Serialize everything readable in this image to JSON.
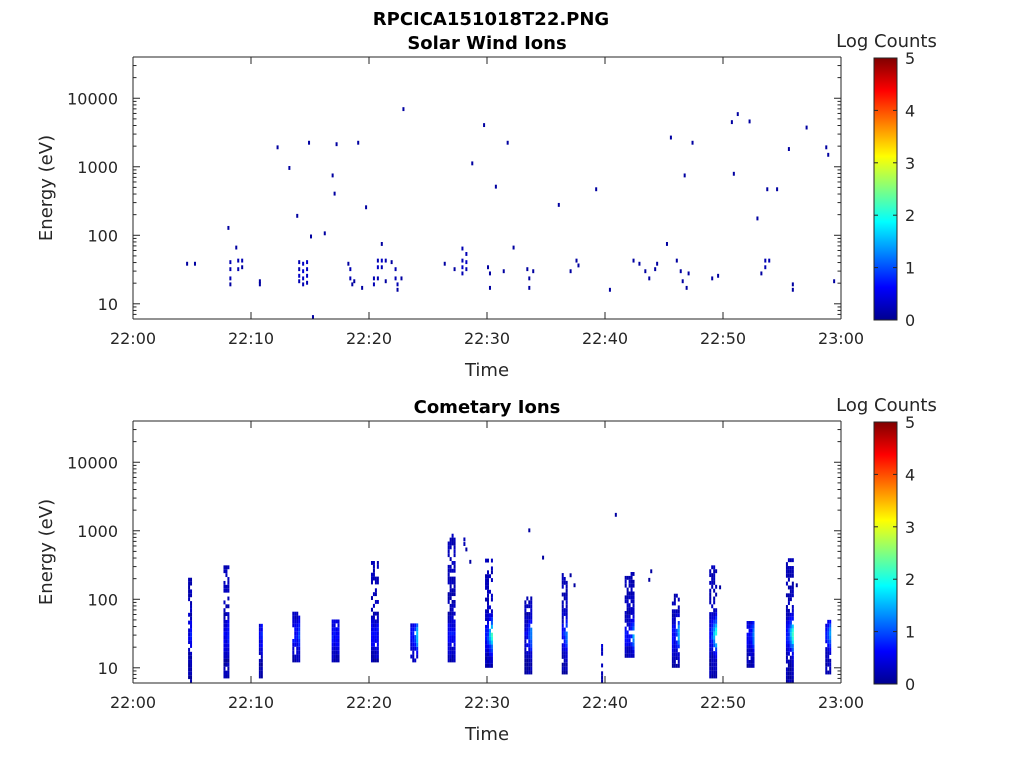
{
  "figure_title": "RPCICA151018T22.PNG",
  "colormap": [
    "#00008f",
    "#0000ff",
    "#0080ff",
    "#00ffff",
    "#80ff80",
    "#ffff00",
    "#ff8000",
    "#ff0000",
    "#800000"
  ],
  "chart_data": [
    {
      "type": "heatmap",
      "title": "Solar Wind Ions",
      "xlabel": "Time",
      "ylabel": "Energy (eV)",
      "y_scale": "log",
      "xlim": [
        "22:00",
        "23:00"
      ],
      "ylim": [
        6,
        40000
      ],
      "x_ticks": [
        "22:00",
        "22:10",
        "22:20",
        "22:30",
        "22:40",
        "22:50",
        "23:00"
      ],
      "y_ticks": [
        "10",
        "100",
        "1000",
        "10000"
      ],
      "colorbar_label": "Log Counts",
      "colorbar_ticks": [
        "0",
        "1",
        "2",
        "3",
        "4",
        "5"
      ],
      "clim": [
        0,
        5
      ],
      "cells": [
        [
          "22:04:30",
          36,
          0.1
        ],
        [
          "22:05:10",
          36,
          0.1
        ],
        [
          "22:08:10",
          38,
          0.2
        ],
        [
          "22:08:10",
          30,
          0.2
        ],
        [
          "22:08:10",
          22,
          0.2
        ],
        [
          "22:08:10",
          18,
          0.1
        ],
        [
          "22:08:40",
          62,
          0.1
        ],
        [
          "22:08:50",
          40,
          0.2
        ],
        [
          "22:08:50",
          30,
          0.2
        ],
        [
          "22:09:10",
          40,
          0.2
        ],
        [
          "22:09:10",
          32,
          0.1
        ],
        [
          "22:08:00",
          120,
          0.1
        ],
        [
          "22:10:40",
          20,
          0.1
        ],
        [
          "22:10:40",
          18,
          0.1
        ],
        [
          "22:12:10",
          1800,
          0.1
        ],
        [
          "22:13:10",
          900,
          0.1
        ],
        [
          "22:13:50",
          180,
          0.1
        ],
        [
          "22:14:00",
          38,
          0.2
        ],
        [
          "22:14:00",
          30,
          0.2
        ],
        [
          "22:14:00",
          24,
          0.3
        ],
        [
          "22:14:00",
          20,
          0.2
        ],
        [
          "22:14:20",
          36,
          0.3
        ],
        [
          "22:14:20",
          28,
          0.4
        ],
        [
          "22:14:20",
          22,
          0.3
        ],
        [
          "22:14:20",
          18,
          0.2
        ],
        [
          "22:14:40",
          38,
          0.3
        ],
        [
          "22:14:40",
          30,
          0.3
        ],
        [
          "22:14:40",
          24,
          0.3
        ],
        [
          "22:14:40",
          19,
          0.2
        ],
        [
          "22:14:50",
          2100,
          0.1
        ],
        [
          "22:15:00",
          90,
          0.1
        ],
        [
          "22:15:10",
          6,
          0.1
        ],
        [
          "22:16:10",
          100,
          0.1
        ],
        [
          "22:16:50",
          700,
          0.1
        ],
        [
          "22:17:00",
          380,
          0.1
        ],
        [
          "22:17:10",
          2000,
          0.1
        ],
        [
          "22:18:10",
          36,
          0.1
        ],
        [
          "22:18:20",
          30,
          0.2
        ],
        [
          "22:18:20",
          22,
          0.2
        ],
        [
          "22:18:30",
          18,
          0.1
        ],
        [
          "22:18:40",
          20,
          0.1
        ],
        [
          "22:19:00",
          2100,
          0.1
        ],
        [
          "22:19:20",
          16,
          0.1
        ],
        [
          "22:19:40",
          240,
          0.1
        ],
        [
          "22:20:20",
          22,
          0.2
        ],
        [
          "22:20:20",
          18,
          0.2
        ],
        [
          "22:20:40",
          40,
          0.2
        ],
        [
          "22:20:40",
          32,
          0.3
        ],
        [
          "22:20:40",
          22,
          0.2
        ],
        [
          "22:21:00",
          70,
          0.1
        ],
        [
          "22:21:00",
          40,
          0.3
        ],
        [
          "22:21:00",
          32,
          0.2
        ],
        [
          "22:21:20",
          40,
          0.2
        ],
        [
          "22:21:20",
          20,
          0.1
        ],
        [
          "22:21:50",
          38,
          0.1
        ],
        [
          "22:22:10",
          30,
          0.2
        ],
        [
          "22:22:10",
          22,
          0.2
        ],
        [
          "22:22:20",
          18,
          0.2
        ],
        [
          "22:22:20",
          15,
          0.1
        ],
        [
          "22:22:40",
          22,
          0.1
        ],
        [
          "22:22:50",
          6500,
          0.1
        ],
        [
          "22:26:20",
          36,
          0.1
        ],
        [
          "22:27:10",
          30,
          0.1
        ],
        [
          "22:27:50",
          60,
          0.2
        ],
        [
          "22:27:50",
          40,
          0.2
        ],
        [
          "22:27:50",
          32,
          0.3
        ],
        [
          "22:27:50",
          26,
          0.2
        ],
        [
          "22:28:10",
          50,
          0.2
        ],
        [
          "22:28:10",
          38,
          0.3
        ],
        [
          "22:28:10",
          30,
          0.2
        ],
        [
          "22:28:40",
          1050,
          0.1
        ],
        [
          "22:29:40",
          3800,
          0.1
        ],
        [
          "22:30:00",
          32,
          0.1
        ],
        [
          "22:30:10",
          26,
          0.1
        ],
        [
          "22:30:10",
          16,
          0.1
        ],
        [
          "22:30:40",
          480,
          0.1
        ],
        [
          "22:31:20",
          28,
          0.1
        ],
        [
          "22:31:40",
          2100,
          0.1
        ],
        [
          "22:32:10",
          62,
          0.1
        ],
        [
          "22:33:20",
          30,
          0.1
        ],
        [
          "22:33:30",
          22,
          0.1
        ],
        [
          "22:33:30",
          16,
          0.1
        ],
        [
          "22:33:50",
          28,
          0.1
        ],
        [
          "22:36:00",
          260,
          0.1
        ],
        [
          "22:37:00",
          28,
          0.1
        ],
        [
          "22:37:30",
          40,
          0.1
        ],
        [
          "22:37:40",
          34,
          0.1
        ],
        [
          "22:39:10",
          440,
          0.1
        ],
        [
          "22:40:20",
          15,
          0.1
        ],
        [
          "22:42:20",
          40,
          0.1
        ],
        [
          "22:42:50",
          36,
          0.1
        ],
        [
          "22:43:20",
          28,
          0.1
        ],
        [
          "22:43:40",
          22,
          0.1
        ],
        [
          "22:44:10",
          30,
          0.1
        ],
        [
          "22:44:20",
          36,
          0.1
        ],
        [
          "22:45:10",
          70,
          0.1
        ],
        [
          "22:45:30",
          2500,
          0.1
        ],
        [
          "22:46:00",
          40,
          0.1
        ],
        [
          "22:46:20",
          28,
          0.1
        ],
        [
          "22:46:30",
          20,
          0.1
        ],
        [
          "22:46:40",
          700,
          0.1
        ],
        [
          "22:46:50",
          16,
          0.1
        ],
        [
          "22:47:00",
          26,
          0.1
        ],
        [
          "22:47:20",
          2100,
          0.1
        ],
        [
          "22:49:00",
          22,
          0.1
        ],
        [
          "22:49:30",
          24,
          0.1
        ],
        [
          "22:50:40",
          4200,
          0.1
        ],
        [
          "22:50:50",
          740,
          0.1
        ],
        [
          "22:51:10",
          5500,
          0.1
        ],
        [
          "22:52:10",
          4300,
          0.1
        ],
        [
          "22:52:50",
          165,
          0.1
        ],
        [
          "22:53:10",
          26,
          0.1
        ],
        [
          "22:53:30",
          40,
          0.2
        ],
        [
          "22:53:30",
          32,
          0.2
        ],
        [
          "22:53:50",
          40,
          0.2
        ],
        [
          "22:53:40",
          440,
          0.1
        ],
        [
          "22:54:30",
          440,
          0.1
        ],
        [
          "22:55:30",
          1700,
          0.1
        ],
        [
          "22:55:50",
          18,
          0.1
        ],
        [
          "22:55:50",
          15,
          0.1
        ],
        [
          "22:57:00",
          3500,
          0.1
        ],
        [
          "22:58:40",
          1800,
          0.1
        ],
        [
          "22:58:50",
          1400,
          0.1
        ],
        [
          "22:59:20",
          20,
          0.1
        ]
      ]
    },
    {
      "type": "heatmap",
      "title": "Cometary Ions",
      "xlabel": "Time",
      "ylabel": "Energy (eV)",
      "y_scale": "log",
      "xlim": [
        "22:00",
        "23:00"
      ],
      "ylim": [
        6,
        40000
      ],
      "x_ticks": [
        "22:00",
        "22:10",
        "22:20",
        "22:30",
        "22:40",
        "22:50",
        "23:00"
      ],
      "y_ticks": [
        "10",
        "100",
        "1000",
        "10000"
      ],
      "colorbar_label": "Log Counts",
      "colorbar_ticks": [
        "0",
        "1",
        "2",
        "3",
        "4",
        "5"
      ],
      "clim": [
        0,
        5
      ],
      "bursts": [
        {
          "t": "22:04:40",
          "w": 2,
          "peak": "22:04:50",
          "lo": 6,
          "hi": 230,
          "c": 0.5
        },
        {
          "t": "22:07:40",
          "w": 3,
          "peak": "22:08:20",
          "lo": 7,
          "hi": 300,
          "c": 1.4
        },
        {
          "t": "22:10:40",
          "w": 2,
          "peak": "22:11:00",
          "lo": 7,
          "hi": 40,
          "c": 0.8
        },
        {
          "t": "22:13:30",
          "w": 4,
          "peak": "22:14:20",
          "lo": 12,
          "hi": 60,
          "c": 1.9
        },
        {
          "t": "22:16:50",
          "w": 4,
          "peak": "22:17:50",
          "lo": 12,
          "hi": 45,
          "c": 1.9
        },
        {
          "t": "22:20:10",
          "w": 4,
          "peak": "22:21:20",
          "lo": 12,
          "hi": 330,
          "c": 1.9
        },
        {
          "t": "22:23:30",
          "w": 4,
          "peak": "22:24:10",
          "lo": 12,
          "hi": 40,
          "c": 2.1
        },
        {
          "t": "22:26:40",
          "w": 4,
          "peak": "22:27:50",
          "lo": 12,
          "hi": 800,
          "c": 1.9
        },
        {
          "t": "22:29:50",
          "w": 4,
          "peak": "22:30:20",
          "lo": 10,
          "hi": 380,
          "c": 1.9
        },
        {
          "t": "22:33:10",
          "w": 4,
          "peak": "22:33:40",
          "lo": 8,
          "hi": 100,
          "c": 1.1
        },
        {
          "t": "22:36:20",
          "w": 3,
          "peak": "22:36:50",
          "lo": 8,
          "hi": 240,
          "c": 1.6
        },
        {
          "t": "22:39:40",
          "w": 1,
          "peak": "22:39:50",
          "lo": 6,
          "hi": 25,
          "c": 0.5
        },
        {
          "t": "22:41:40",
          "w": 5,
          "peak": "22:42:30",
          "lo": 14,
          "hi": 240,
          "c": 1.8
        },
        {
          "t": "22:45:40",
          "w": 4,
          "peak": "22:46:20",
          "lo": 10,
          "hi": 120,
          "c": 1.9
        },
        {
          "t": "22:48:50",
          "w": 4,
          "peak": "22:49:20",
          "lo": 7,
          "hi": 280,
          "c": 1.9
        },
        {
          "t": "22:52:00",
          "w": 4,
          "peak": "22:52:40",
          "lo": 10,
          "hi": 45,
          "c": 1.6
        },
        {
          "t": "22:55:20",
          "w": 4,
          "peak": "22:55:50",
          "lo": 6,
          "hi": 370,
          "c": 1.9
        },
        {
          "t": "22:58:40",
          "w": 3,
          "peak": "22:59:00",
          "lo": 8,
          "hi": 45,
          "c": 1.2
        }
      ],
      "cells": [
        [
          "22:28:00",
          700,
          0.2
        ],
        [
          "22:28:00",
          600,
          0.2
        ],
        [
          "22:28:10",
          500,
          0.1
        ],
        [
          "22:28:30",
          330,
          0.1
        ],
        [
          "22:33:30",
          950,
          0.1
        ],
        [
          "22:34:40",
          380,
          0.1
        ],
        [
          "22:40:50",
          1600,
          0.1
        ],
        [
          "22:37:20",
          150,
          0.1
        ],
        [
          "22:37:00",
          210,
          0.1
        ],
        [
          "22:43:40",
          180,
          0.1
        ],
        [
          "22:43:50",
          240,
          0.1
        ],
        [
          "22:49:40",
          140,
          0.1
        ],
        [
          "22:56:10",
          150,
          0.1
        ]
      ]
    }
  ]
}
